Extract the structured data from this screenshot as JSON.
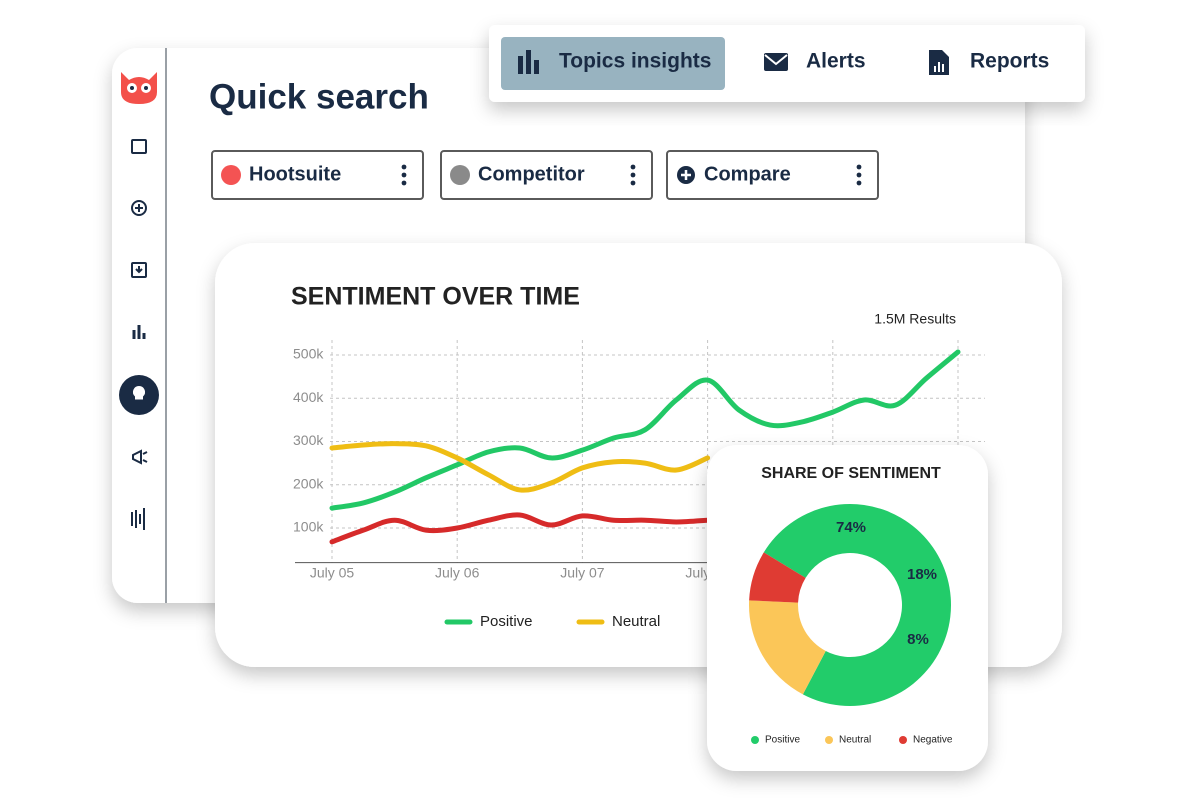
{
  "nav": {
    "items": [
      "Topics insights",
      "Alerts",
      "Reports"
    ]
  },
  "header": {
    "title": "Quick search"
  },
  "chips": [
    {
      "label": "Hootsuite",
      "color": "#f45353"
    },
    {
      "label": "Competitor",
      "color": "#8a8a8a"
    },
    {
      "label": "Compare"
    }
  ],
  "chart_data": [
    {
      "type": "line",
      "title": "SENTIMENT OVER TIME",
      "subtitle": "1.5M Results",
      "categories": [
        "July 05",
        null,
        null,
        null,
        "July 06",
        null,
        null,
        null,
        "July 07",
        null,
        null,
        null,
        "July 08",
        null,
        null,
        null,
        null,
        null,
        null,
        null,
        null
      ],
      "series": [
        {
          "name": "Positive",
          "color": "#22c866",
          "values": [
            146000,
            158000,
            183000,
            216000,
            246000,
            276000,
            285000,
            262000,
            280000,
            308000,
            327000,
            396000,
            442000,
            373000,
            338000,
            345000,
            368000,
            396000,
            384000,
            447000,
            507000
          ]
        },
        {
          "name": "Neutral",
          "color": "#efbd14",
          "values": [
            285000,
            292000,
            295000,
            290000,
            262000,
            223000,
            188000,
            204000,
            239000,
            253000,
            250000,
            234000,
            262000,
            null,
            null,
            null,
            null,
            null,
            null,
            null,
            null
          ]
        },
        {
          "name": "Negative",
          "color": "#d62a2a",
          "values": [
            68000,
            95000,
            118000,
            95000,
            100000,
            118000,
            130000,
            107000,
            128000,
            118000,
            118000,
            114000,
            118000,
            null,
            null,
            null,
            null,
            null,
            null,
            null,
            null
          ]
        }
      ],
      "ylim": [
        20000,
        520000
      ],
      "yticks": [
        {
          "value": 100000,
          "label": "100k"
        },
        {
          "value": 200000,
          "label": "200k"
        },
        {
          "value": 300000,
          "label": "300k"
        },
        {
          "value": 400000,
          "label": "400k"
        },
        {
          "value": 500000,
          "label": "500k"
        }
      ],
      "grid": true
    },
    {
      "type": "pie",
      "title": "SHARE OF SENTIMENT",
      "categories": [
        "Positive",
        "Neutral",
        "Negative"
      ],
      "values": [
        74,
        18,
        8
      ],
      "value_labels": [
        "74%",
        "18%",
        "8%"
      ],
      "colors": [
        "#22cc6a",
        "#fbc658",
        "#df3b33"
      ]
    }
  ]
}
